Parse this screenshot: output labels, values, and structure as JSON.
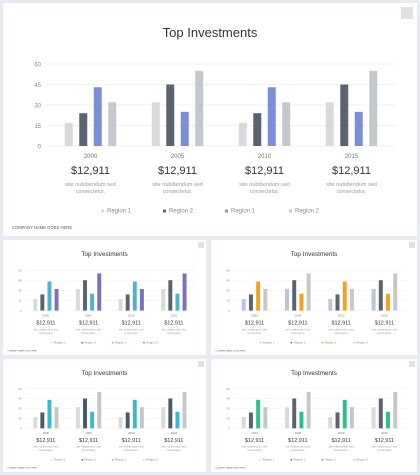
{
  "slides": [
    {
      "title": "Top Investments",
      "footer": "COMPANY NAME GOES HERE",
      "colors": [
        "#d9d9d9",
        "#5c6370",
        "#7b8fd6",
        "#c4c7cc"
      ],
      "legend": [
        "Region 1",
        "Region 2",
        "Region 1",
        "Region 2"
      ],
      "values": [
        [
          "17",
          "24",
          "43",
          "32"
        ],
        [
          "32",
          "45",
          "25",
          "55"
        ],
        [
          "17",
          "24",
          "43",
          "32"
        ],
        [
          "32",
          "45",
          "25",
          "55"
        ]
      ],
      "cards": [
        {
          "year": "2000",
          "amount": "$12,911",
          "desc": "site nubibendum sed consectetur."
        },
        {
          "year": "2005",
          "amount": "$12,911",
          "desc": "site nubibendum sed consectetur."
        },
        {
          "year": "2010",
          "amount": "$12,911",
          "desc": "site nubibendum sed consectetur."
        },
        {
          "year": "2015",
          "amount": "$12,911",
          "desc": "site nubibendum sed consectetur."
        }
      ]
    },
    {
      "title": "Top Investments",
      "footer": "COMPANY NAME GOES HERE",
      "colors": [
        "#d9d9d9",
        "#5c6370",
        "#4fb3c8",
        "#7b6fc0"
      ],
      "legend": [
        "Region 1",
        "Region 2",
        "Region 1",
        "Region 2"
      ],
      "values": [
        [
          "17",
          "24",
          "43",
          "32"
        ],
        [
          "32",
          "45",
          "25",
          "55"
        ],
        [
          "17",
          "24",
          "43",
          "32"
        ],
        [
          "32",
          "45",
          "25",
          "55"
        ]
      ],
      "cards": [
        {
          "year": "2000",
          "amount": "$12,911",
          "desc": "site nubibendum sed consectetur."
        },
        {
          "year": "2005",
          "amount": "$12,911",
          "desc": "site nubibendum sed consectetur."
        },
        {
          "year": "2010",
          "amount": "$12,911",
          "desc": "site nubibendum sed consectetur."
        },
        {
          "year": "2015",
          "amount": "$12,911",
          "desc": "site nubibendum sed consectetur."
        }
      ]
    },
    {
      "title": "Top Investments",
      "footer": "COMPANY NAME GOES HERE",
      "colors": [
        "#b8c6db",
        "#5c6370",
        "#f2a31b",
        "#c4c7cc"
      ],
      "legend": [
        "Region 1",
        "Region 2",
        "Region 1",
        "Region 2"
      ],
      "values": [
        [
          "17",
          "24",
          "43",
          "32"
        ],
        [
          "32",
          "45",
          "25",
          "55"
        ],
        [
          "17",
          "24",
          "43",
          "32"
        ],
        [
          "32",
          "45",
          "25",
          "55"
        ]
      ],
      "cards": [
        {
          "year": "2000",
          "amount": "$12,911",
          "desc": "site nubibendum sed consectetur."
        },
        {
          "year": "2005",
          "amount": "$12,911",
          "desc": "site nubibendum sed consectetur."
        },
        {
          "year": "2010",
          "amount": "$12,911",
          "desc": "site nubibendum sed consectetur."
        },
        {
          "year": "2015",
          "amount": "$12,911",
          "desc": "site nubibendum sed consectetur."
        }
      ]
    },
    {
      "title": "Top Investments",
      "footer": "COMPANY NAME GOES HERE",
      "colors": [
        "#d9d9d9",
        "#4a5968",
        "#3fb6c9",
        "#c4c7cc"
      ],
      "legend": [
        "Region 1",
        "Region 2",
        "Region 1",
        "Region 2"
      ],
      "values": [
        [
          "17",
          "24",
          "43",
          "32"
        ],
        [
          "32",
          "45",
          "25",
          "55"
        ],
        [
          "17",
          "24",
          "43",
          "32"
        ],
        [
          "32",
          "45",
          "25",
          "55"
        ]
      ],
      "cards": [
        {
          "year": "2000",
          "amount": "$12,911",
          "desc": "site nubibendum sed consectetur."
        },
        {
          "year": "2005",
          "amount": "$12,911",
          "desc": "site nubibendum sed consectetur."
        },
        {
          "year": "2010",
          "amount": "$12,911",
          "desc": "site nubibendum sed consectetur."
        },
        {
          "year": "2015",
          "amount": "$12,911",
          "desc": "site nubibendum sed consectetur."
        }
      ]
    },
    {
      "title": "Top Investments",
      "footer": "COMPANY NAME GOES HERE",
      "colors": [
        "#d9d9d9",
        "#5c6370",
        "#2fbf8a",
        "#c4c7cc"
      ],
      "legend": [
        "Region 1",
        "Region 2",
        "Region 1",
        "Region 2"
      ],
      "values": [
        [
          "17",
          "24",
          "43",
          "32"
        ],
        [
          "32",
          "45",
          "25",
          "55"
        ],
        [
          "17",
          "24",
          "43",
          "32"
        ],
        [
          "32",
          "45",
          "25",
          "55"
        ]
      ],
      "cards": [
        {
          "year": "2000",
          "amount": "$12,911",
          "desc": "site nubibendum sed consectetur."
        },
        {
          "year": "2005",
          "amount": "$12,911",
          "desc": "site nubibendum sed consectetur."
        },
        {
          "year": "2010",
          "amount": "$12,911",
          "desc": "site nubibendum sed consectetur."
        },
        {
          "year": "2015",
          "amount": "$12,911",
          "desc": "site nubibendum sed consectetur."
        }
      ]
    }
  ],
  "chart_data": [
    {
      "type": "bar",
      "title": "Top Investments",
      "categories": [
        "2000",
        "2005",
        "2010",
        "2015"
      ],
      "ylim": [
        0,
        60
      ],
      "yticks": [
        "0",
        "15",
        "30",
        "45",
        "60"
      ],
      "grid": true,
      "legend_position": "bottom",
      "series": [
        {
          "name": "Region 1",
          "values": [
            17,
            32,
            17,
            32
          ]
        },
        {
          "name": "Region 2",
          "values": [
            24,
            45,
            24,
            45
          ]
        },
        {
          "name": "Region 1",
          "values": [
            43,
            25,
            43,
            25
          ]
        },
        {
          "name": "Region 2",
          "values": [
            32,
            55,
            32,
            55
          ]
        }
      ]
    }
  ]
}
